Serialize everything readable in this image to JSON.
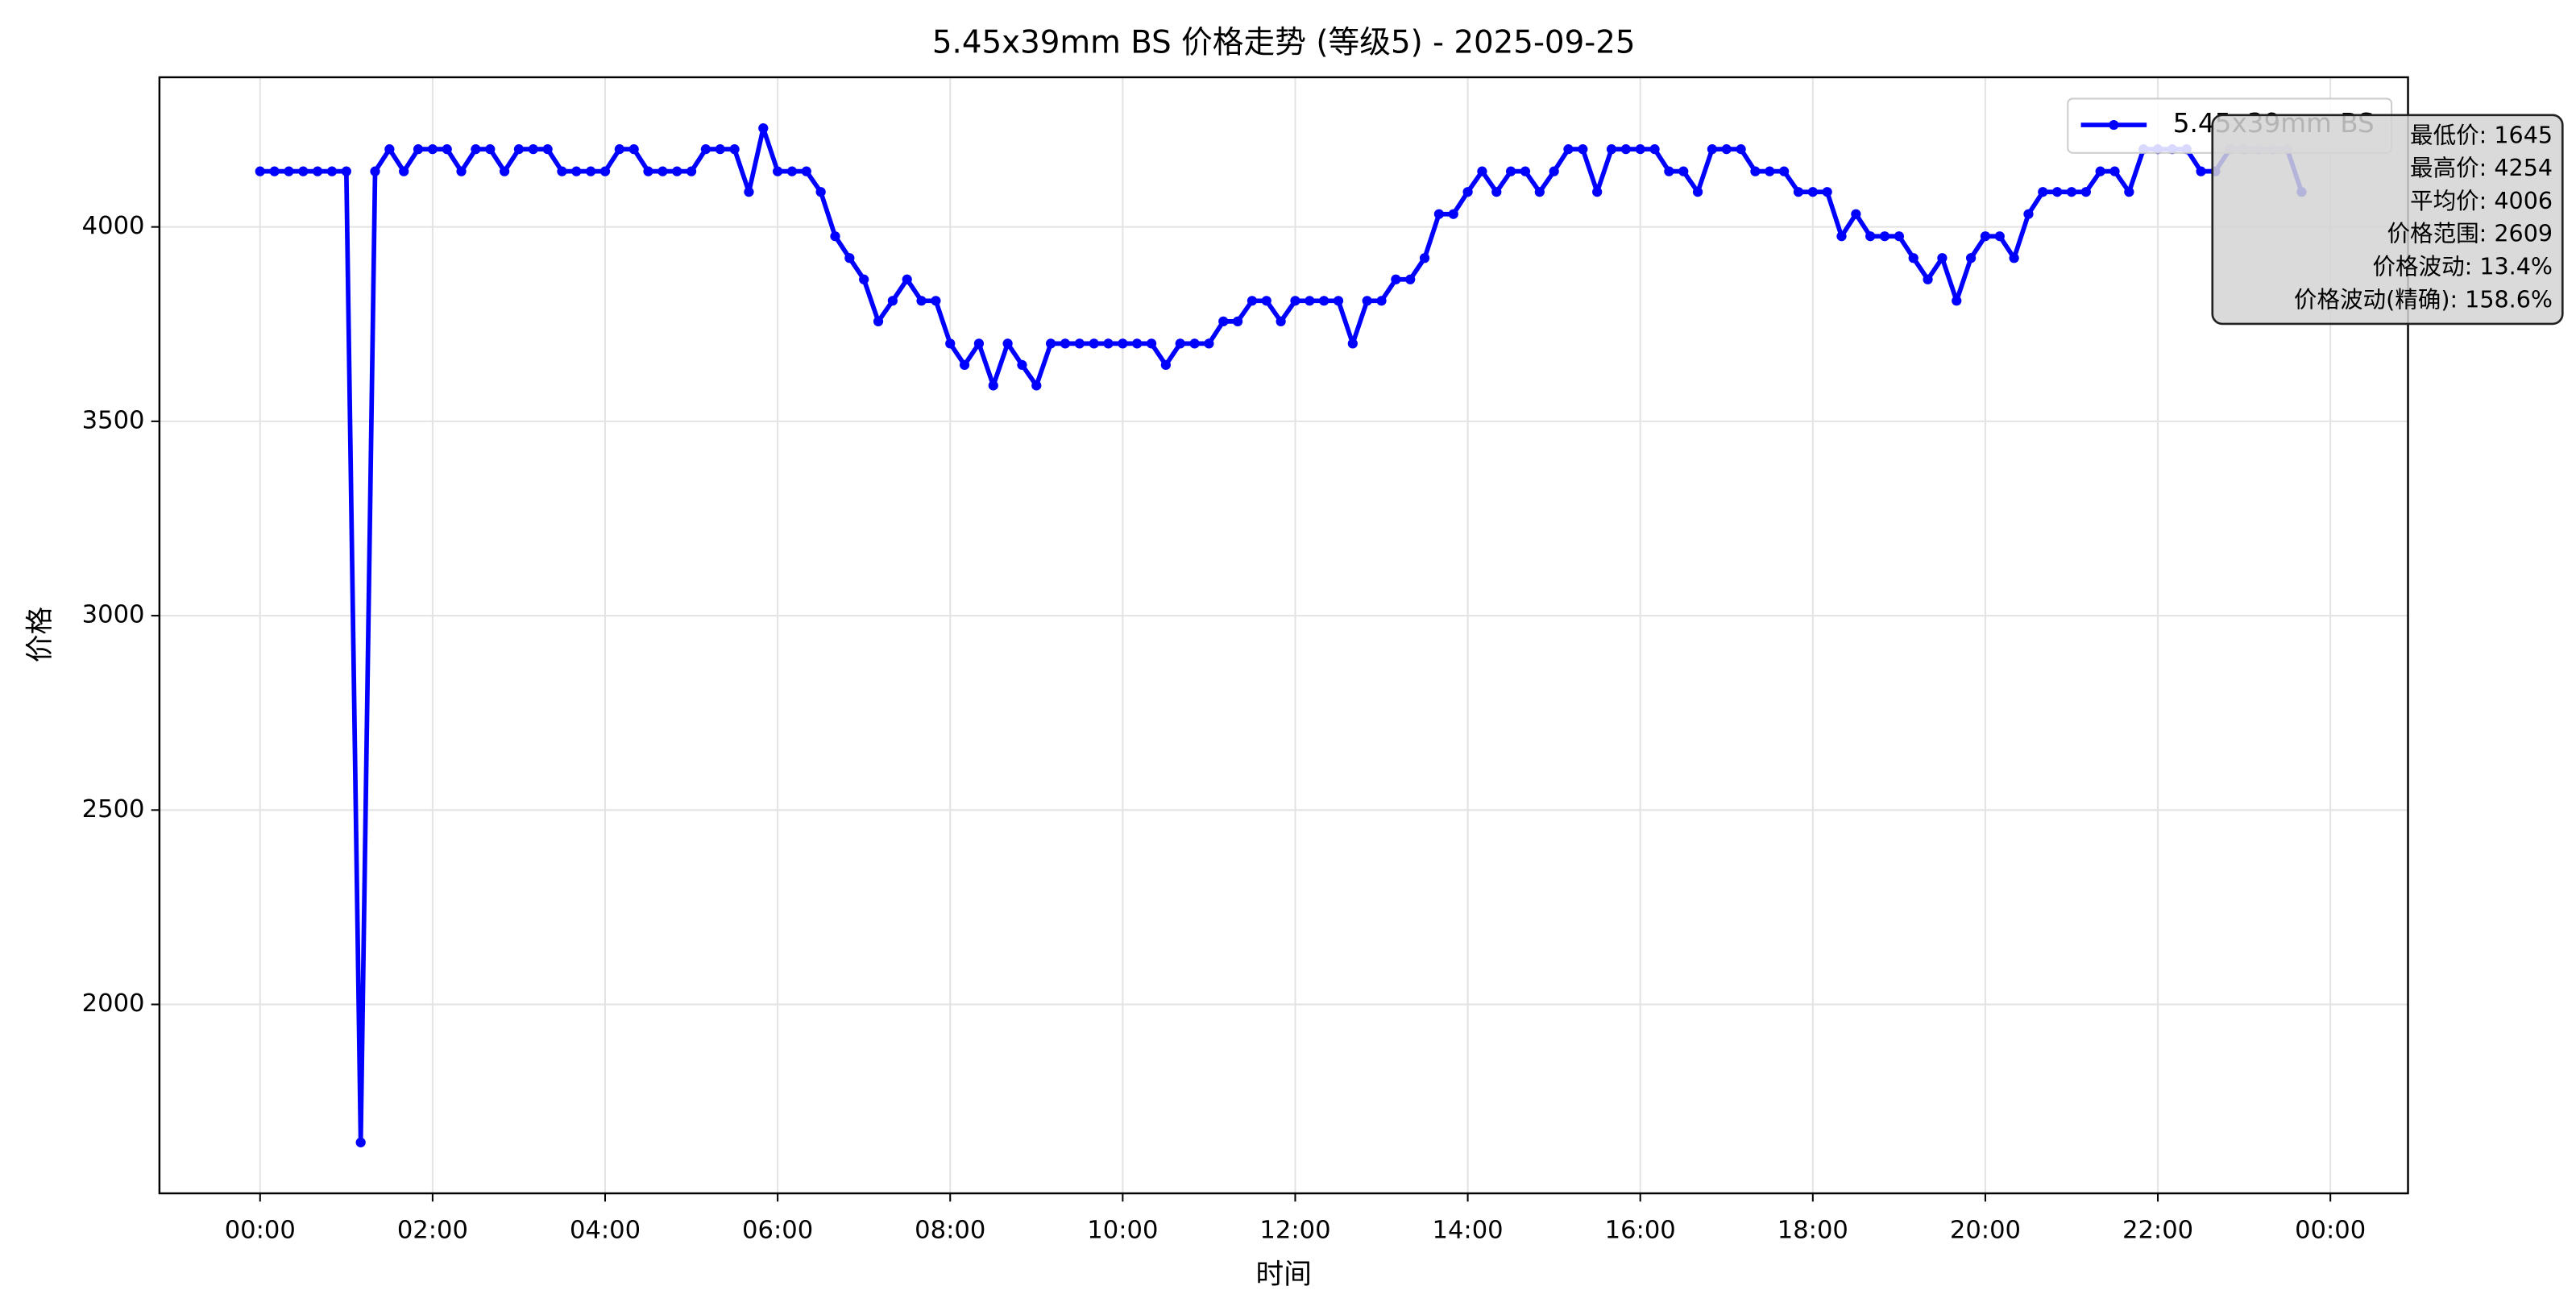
{
  "chart_data": {
    "type": "line",
    "title": "5.45x39mm BS 价格走势 (等级5) - 2025-09-25",
    "xlabel": "时间",
    "ylabel": "价格",
    "x": [
      "00:00",
      "00:10",
      "00:20",
      "00:30",
      "00:40",
      "00:50",
      "01:00",
      "01:10",
      "01:20",
      "01:30",
      "01:40",
      "01:50",
      "02:00",
      "02:10",
      "02:20",
      "02:30",
      "02:40",
      "02:50",
      "03:00",
      "03:10",
      "03:20",
      "03:30",
      "03:40",
      "03:50",
      "04:00",
      "04:10",
      "04:20",
      "04:30",
      "04:40",
      "04:50",
      "05:00",
      "05:10",
      "05:20",
      "05:30",
      "05:40",
      "05:50",
      "06:00",
      "06:10",
      "06:20",
      "06:30",
      "06:40",
      "06:50",
      "07:00",
      "07:10",
      "07:20",
      "07:30",
      "07:40",
      "07:50",
      "08:00",
      "08:10",
      "08:20",
      "08:30",
      "08:40",
      "08:50",
      "09:00",
      "09:10",
      "09:20",
      "09:30",
      "09:40",
      "09:50",
      "10:00",
      "10:10",
      "10:20",
      "10:30",
      "10:40",
      "10:50",
      "11:00",
      "11:10",
      "11:20",
      "11:30",
      "11:40",
      "11:50",
      "12:00",
      "12:10",
      "12:20",
      "12:30",
      "12:40",
      "12:50",
      "13:00",
      "13:10",
      "13:20",
      "13:30",
      "13:40",
      "13:50",
      "14:00",
      "14:10",
      "14:20",
      "14:30",
      "14:40",
      "14:50",
      "15:00",
      "15:10",
      "15:20",
      "15:30",
      "15:40",
      "15:50",
      "16:00",
      "16:10",
      "16:20",
      "16:30",
      "16:40",
      "16:50",
      "17:00",
      "17:10",
      "17:20",
      "17:30",
      "17:40",
      "17:50",
      "18:00",
      "18:10",
      "18:20",
      "18:30",
      "18:40",
      "18:50",
      "19:00",
      "19:10",
      "19:20",
      "19:30",
      "19:40",
      "19:50",
      "20:00",
      "20:10",
      "20:20",
      "20:30",
      "20:40",
      "20:50",
      "21:00",
      "21:10",
      "21:20",
      "21:30",
      "21:40",
      "21:50",
      "22:00",
      "22:10",
      "22:20",
      "22:30",
      "22:40",
      "22:50",
      "23:00",
      "23:10",
      "23:20",
      "23:30",
      "23:40"
    ],
    "series": [
      {
        "name": "5.45x39mm BS",
        "color": "#0000ff",
        "values": [
          4143,
          4143,
          4143,
          4143,
          4143,
          4143,
          4143,
          1645,
          4143,
          4200,
          4143,
          4200,
          4200,
          4200,
          4143,
          4200,
          4200,
          4143,
          4200,
          4200,
          4200,
          4143,
          4143,
          4143,
          4143,
          4200,
          4200,
          4143,
          4143,
          4143,
          4143,
          4200,
          4200,
          4200,
          4090,
          4254,
          4143,
          4143,
          4143,
          4090,
          3976,
          3920,
          3865,
          3757,
          3810,
          3865,
          3810,
          3810,
          3700,
          3645,
          3700,
          3592,
          3700,
          3645,
          3592,
          3700,
          3700,
          3700,
          3700,
          3700,
          3700,
          3700,
          3700,
          3645,
          3700,
          3700,
          3700,
          3757,
          3757,
          3810,
          3810,
          3757,
          3810,
          3810,
          3810,
          3810,
          3700,
          3810,
          3810,
          3865,
          3865,
          3920,
          4033,
          4033,
          4090,
          4143,
          4090,
          4143,
          4143,
          4090,
          4143,
          4200,
          4200,
          4090,
          4200,
          4200,
          4200,
          4200,
          4143,
          4143,
          4090,
          4200,
          4200,
          4200,
          4143,
          4143,
          4143,
          4090,
          4090,
          4090,
          3976,
          4033,
          3976,
          3976,
          3976,
          3920,
          3865,
          3920,
          3810,
          3920,
          3976,
          3976,
          3920,
          4033,
          4090,
          4090,
          4090,
          4090,
          4143,
          4143,
          4090,
          4200,
          4200,
          4200,
          4200,
          4143,
          4143,
          4200,
          4200,
          4200,
          4200,
          4200,
          4090
        ]
      }
    ],
    "xlim": [
      -70,
      1494
    ],
    "xticks": [
      {
        "value": 0,
        "label": "00:00"
      },
      {
        "value": 120,
        "label": "02:00"
      },
      {
        "value": 240,
        "label": "04:00"
      },
      {
        "value": 360,
        "label": "06:00"
      },
      {
        "value": 480,
        "label": "08:00"
      },
      {
        "value": 600,
        "label": "10:00"
      },
      {
        "value": 720,
        "label": "12:00"
      },
      {
        "value": 840,
        "label": "14:00"
      },
      {
        "value": 960,
        "label": "16:00"
      },
      {
        "value": 1080,
        "label": "18:00"
      },
      {
        "value": 1200,
        "label": "20:00"
      },
      {
        "value": 1320,
        "label": "22:00"
      },
      {
        "value": 1440,
        "label": "00:00"
      }
    ],
    "ylim": [
      1514,
      4385
    ],
    "yticks": [
      2000,
      2500,
      3000,
      3500,
      4000
    ],
    "grid": true,
    "legend": "upper right",
    "stats": [
      "最低价: 1645",
      "最高价: 4254",
      "平均价: 4006",
      "价格范围: 2609",
      "价格波动: 13.4%",
      "价格波动(精确): 158.6%"
    ]
  }
}
